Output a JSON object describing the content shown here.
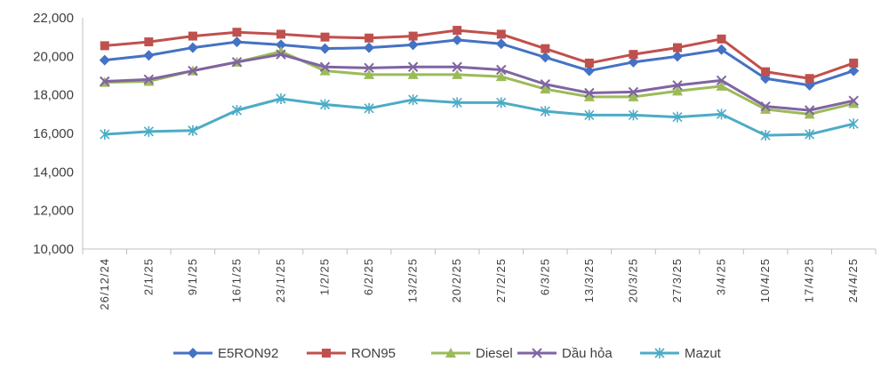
{
  "chart_data": {
    "type": "line",
    "title": "",
    "xlabel": "",
    "ylabel": "",
    "ylim": [
      10000,
      22000
    ],
    "yticks": [
      10000,
      12000,
      14000,
      16000,
      18000,
      20000,
      22000
    ],
    "ytick_labels": [
      "10,000",
      "12,000",
      "14,000",
      "16,000",
      "18,000",
      "20,000",
      "22,000"
    ],
    "grid": false,
    "legend_position": "bottom",
    "categories": [
      "26/12/24",
      "2/1/25",
      "9/1/25",
      "16/1/25",
      "23/1/25",
      "1/2/25",
      "6/2/25",
      "13/2/25",
      "20/2/25",
      "27/2/25",
      "6/3/25",
      "13/3/25",
      "20/3/25",
      "27/3/25",
      "3/4/25",
      "10/4/25",
      "17/4/25",
      "24/4/25"
    ],
    "series": [
      {
        "name": "E5RON92",
        "color": "#4472c4",
        "marker": "diamond",
        "values": [
          19800,
          20050,
          20450,
          20750,
          20600,
          20400,
          20450,
          20600,
          20850,
          20650,
          19950,
          19250,
          19700,
          20000,
          20350,
          18850,
          18500,
          19250
        ]
      },
      {
        "name": "RON95",
        "color": "#c0504d",
        "marker": "square",
        "values": [
          20550,
          20750,
          21050,
          21250,
          21150,
          21000,
          20950,
          21050,
          21350,
          21150,
          20400,
          19650,
          20100,
          20450,
          20900,
          19200,
          18850,
          19650
        ]
      },
      {
        "name": "Diesel",
        "color": "#9bbb59",
        "marker": "triangle",
        "values": [
          18650,
          18700,
          19250,
          19700,
          20250,
          19250,
          19050,
          19050,
          19050,
          18950,
          18300,
          17900,
          17900,
          18200,
          18450,
          17250,
          17000,
          17550
        ]
      },
      {
        "name": "Dầu hỏa",
        "color": "#8064a2",
        "marker": "x",
        "values": [
          18700,
          18800,
          19250,
          19700,
          20100,
          19450,
          19400,
          19450,
          19450,
          19300,
          18550,
          18100,
          18150,
          18500,
          18750,
          17400,
          17200,
          17700
        ]
      },
      {
        "name": "Mazut",
        "color": "#4bacc6",
        "marker": "star",
        "values": [
          15950,
          16100,
          16150,
          17200,
          17800,
          17500,
          17300,
          17750,
          17600,
          17600,
          17150,
          16950,
          16950,
          16850,
          17000,
          15900,
          15950,
          16500
        ]
      }
    ]
  }
}
